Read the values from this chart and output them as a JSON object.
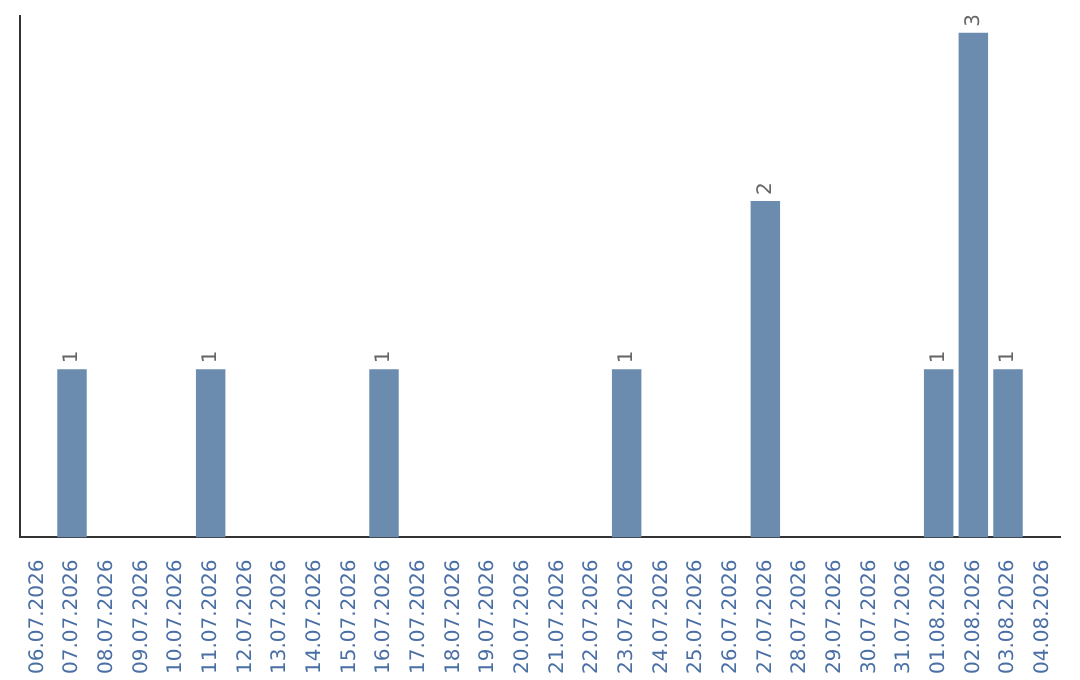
{
  "chart_data": {
    "type": "bar",
    "categories": [
      "06.07.2026",
      "07.07.2026",
      "08.07.2026",
      "09.07.2026",
      "10.07.2026",
      "11.07.2026",
      "12.07.2026",
      "13.07.2026",
      "14.07.2026",
      "15.07.2026",
      "16.07.2026",
      "17.07.2026",
      "18.07.2026",
      "19.07.2026",
      "20.07.2026",
      "21.07.2026",
      "22.07.2026",
      "23.07.2026",
      "24.07.2026",
      "25.07.2026",
      "26.07.2026",
      "27.07.2026",
      "28.07.2026",
      "29.07.2026",
      "30.07.2026",
      "31.07.2026",
      "01.08.2026",
      "02.08.2026",
      "03.08.2026",
      "04.08.2026"
    ],
    "values": [
      0,
      1,
      0,
      0,
      0,
      1,
      0,
      0,
      0,
      0,
      1,
      0,
      0,
      0,
      0,
      0,
      0,
      1,
      0,
      0,
      0,
      2,
      0,
      0,
      0,
      0,
      1,
      3,
      1,
      0
    ],
    "color": "#6b8cae",
    "ylim": [
      0,
      3.1
    ],
    "value_labels": [
      null,
      "1",
      null,
      null,
      null,
      "1",
      null,
      null,
      null,
      null,
      "1",
      null,
      null,
      null,
      null,
      null,
      null,
      "1",
      null,
      null,
      null,
      "2",
      null,
      null,
      null,
      null,
      "1",
      "3",
      "1",
      null
    ],
    "tick_labels": "x",
    "grid": false,
    "legend": false
  }
}
